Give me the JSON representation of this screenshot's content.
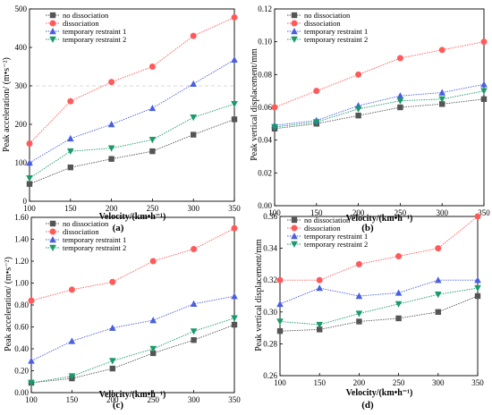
{
  "panel_label_suffix": "",
  "chart_data": [
    {
      "panel": "(a)",
      "type": "line",
      "xlabel": "Velocity/(km•h⁻¹)",
      "ylabel": "Peak acceleration/ (m•s⁻²)",
      "x": [
        100,
        150,
        200,
        250,
        300,
        350
      ],
      "xlim": [
        100,
        350
      ],
      "ylim": [
        0,
        500
      ],
      "yticks": [
        0,
        100,
        200,
        300,
        400,
        500
      ],
      "ytick_labels": [
        "0",
        "100",
        "200",
        "300",
        "400",
        "500"
      ],
      "xtick_labels": [
        "100",
        "150",
        "200",
        "250",
        "300",
        "350"
      ],
      "legend_position": "top-left",
      "reference_line_y": 300,
      "series": [
        {
          "name": "no dissociation",
          "marker": "square",
          "color": "#555555",
          "values": [
            45,
            88,
            110,
            130,
            173,
            213
          ]
        },
        {
          "name": "dissociation",
          "marker": "circle",
          "color": "#ff5a5a",
          "values": [
            150,
            260,
            310,
            350,
            430,
            478
          ]
        },
        {
          "name": "temporary restraint 1",
          "marker": "triangle-up",
          "color": "#4a5ee0",
          "values": [
            100,
            163,
            200,
            242,
            305,
            368
          ]
        },
        {
          "name": "temporary restraint 2",
          "marker": "triangle-down",
          "color": "#1a9a6a",
          "values": [
            60,
            130,
            138,
            160,
            218,
            253
          ]
        }
      ]
    },
    {
      "panel": "(b)",
      "type": "line",
      "xlabel": "Velocity/(km•h⁻¹)",
      "ylabel": "Peak vertical displacement/mm",
      "x": [
        100,
        150,
        200,
        250,
        300,
        350
      ],
      "xlim": [
        100,
        350
      ],
      "ylim": [
        0,
        0.12
      ],
      "yticks": [
        0,
        0.02,
        0.04,
        0.06,
        0.08,
        0.1,
        0.12
      ],
      "ytick_labels": [
        "0.00",
        "0.02",
        "0.04",
        "0.06",
        "0.08",
        "0.10",
        "0.12"
      ],
      "xtick_labels": [
        "100",
        "150",
        "200",
        "250",
        "300",
        "350"
      ],
      "legend_position": "top-left",
      "series": [
        {
          "name": "no dissociation",
          "marker": "square",
          "color": "#555555",
          "values": [
            0.047,
            0.05,
            0.055,
            0.06,
            0.062,
            0.065
          ]
        },
        {
          "name": "dissociation",
          "marker": "circle",
          "color": "#ff5a5a",
          "values": [
            0.06,
            0.07,
            0.08,
            0.09,
            0.095,
            0.1
          ]
        },
        {
          "name": "temporary restraint 1",
          "marker": "triangle-up",
          "color": "#4a5ee0",
          "values": [
            0.049,
            0.052,
            0.061,
            0.067,
            0.069,
            0.074
          ]
        },
        {
          "name": "temporary restraint 2",
          "marker": "triangle-down",
          "color": "#1a9a6a",
          "values": [
            0.048,
            0.051,
            0.059,
            0.064,
            0.065,
            0.07
          ]
        }
      ]
    },
    {
      "panel": "(c)",
      "type": "line",
      "xlabel": "Velocity/(km•h⁻¹)",
      "ylabel": "Peak acceleration/ (m•s⁻²)",
      "x": [
        100,
        150,
        200,
        250,
        300,
        350
      ],
      "xlim": [
        100,
        350
      ],
      "ylim": [
        0,
        1.6
      ],
      "yticks": [
        0,
        0.2,
        0.4,
        0.6,
        0.8,
        1.0,
        1.2,
        1.4,
        1.6
      ],
      "ytick_labels": [
        "0.00",
        "0.20",
        "0.40",
        "0.60",
        "0.80",
        "1.00",
        "1.20",
        "1.40",
        "1.60"
      ],
      "xtick_labels": [
        "100",
        "150",
        "200",
        "250",
        "300",
        "350"
      ],
      "legend_position": "top-left",
      "series": [
        {
          "name": "no dissociation",
          "marker": "square",
          "color": "#555555",
          "values": [
            0.09,
            0.13,
            0.22,
            0.36,
            0.48,
            0.62
          ]
        },
        {
          "name": "dissociation",
          "marker": "circle",
          "color": "#ff5a5a",
          "values": [
            0.84,
            0.94,
            1.01,
            1.2,
            1.31,
            1.5
          ]
        },
        {
          "name": "temporary restraint 1",
          "marker": "triangle-up",
          "color": "#4a5ee0",
          "values": [
            0.29,
            0.47,
            0.59,
            0.66,
            0.81,
            0.88
          ]
        },
        {
          "name": "temporary restraint 2",
          "marker": "triangle-down",
          "color": "#1a9a6a",
          "values": [
            0.09,
            0.15,
            0.29,
            0.4,
            0.56,
            0.68
          ]
        }
      ]
    },
    {
      "panel": "(d)",
      "type": "line",
      "xlabel": "Velocity/(km•h⁻¹)",
      "ylabel": "Peak vertical displacement/mm",
      "x": [
        100,
        150,
        200,
        250,
        300,
        350
      ],
      "xlim": [
        100,
        350
      ],
      "ylim": [
        0.26,
        0.36
      ],
      "yticks": [
        0.26,
        0.28,
        0.3,
        0.32,
        0.34,
        0.36
      ],
      "ytick_labels": [
        "0.26",
        "0.28",
        "0.30",
        "0.32",
        "0.34",
        "0.36"
      ],
      "xtick_labels": [
        "100",
        "150",
        "200",
        "250",
        "300",
        "350"
      ],
      "legend_position": "top-left",
      "series": [
        {
          "name": "no dissociation",
          "marker": "square",
          "color": "#555555",
          "values": [
            0.288,
            0.289,
            0.294,
            0.296,
            0.3,
            0.31
          ]
        },
        {
          "name": "dissociation",
          "marker": "circle",
          "color": "#ff5a5a",
          "values": [
            0.32,
            0.32,
            0.33,
            0.335,
            0.34,
            0.36
          ]
        },
        {
          "name": "temporary restraint 1",
          "marker": "triangle-up",
          "color": "#4a5ee0",
          "values": [
            0.305,
            0.315,
            0.31,
            0.312,
            0.32,
            0.32
          ]
        },
        {
          "name": "temporary restraint 2",
          "marker": "triangle-down",
          "color": "#1a9a6a",
          "values": [
            0.294,
            0.292,
            0.299,
            0.305,
            0.311,
            0.315
          ]
        }
      ]
    }
  ]
}
